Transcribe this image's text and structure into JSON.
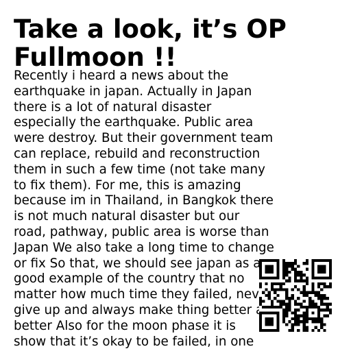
{
  "title_lines": [
    "Take a look, it’s OP",
    "Fullmoon !!"
  ],
  "body_lines": [
    "Recently i heard a news about the",
    "earthquake in japan. Actually in Japan",
    "there is a lot of natural disaster",
    "especially the earthquake. Public area",
    "were destroy. But their government team",
    "can replace, rebuild and reconstruction",
    "them in such a few time (not take many",
    "to fix them). For me, this is amazing",
    "because im in Thailand, in Bangkok there",
    "is not much natural disaster but our",
    "road, pathway, public area is worse than",
    "Japan We also take a long time to change",
    "or fix So that, we should see japan as a",
    "good example of the country that no",
    "matter how much time they failed, never",
    "give up and always make thing better and",
    "better Also for the moon phase it is",
    "show that it’s okay to be failed, in one"
  ],
  "qr_code": {
    "icon": "qr-code-icon",
    "fg_color": "#000000",
    "bg_color": "#ffffff"
  }
}
